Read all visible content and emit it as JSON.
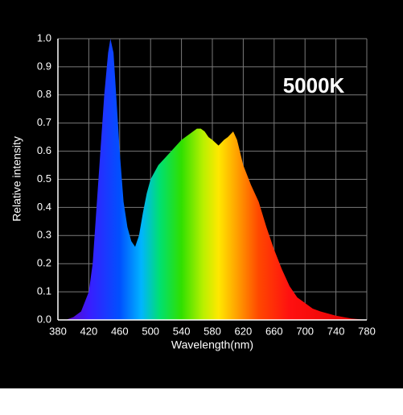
{
  "chart_data": {
    "type": "area",
    "annotation": "5000K",
    "x_label": "Wavelength(nm)",
    "y_label": "Relative intensity",
    "x": [
      380,
      390,
      400,
      410,
      420,
      425,
      430,
      435,
      440,
      445,
      448,
      452,
      455,
      460,
      465,
      470,
      475,
      480,
      485,
      490,
      495,
      500,
      510,
      520,
      530,
      540,
      550,
      560,
      565,
      570,
      575,
      580,
      588,
      595,
      600,
      607,
      612,
      620,
      630,
      640,
      650,
      660,
      670,
      680,
      690,
      700,
      710,
      720,
      740,
      760,
      780
    ],
    "series": [
      {
        "values": [
          0,
          0,
          0.01,
          0.03,
          0.1,
          0.2,
          0.4,
          0.6,
          0.8,
          0.95,
          1.0,
          0.95,
          0.82,
          0.6,
          0.42,
          0.33,
          0.28,
          0.26,
          0.3,
          0.38,
          0.45,
          0.5,
          0.55,
          0.58,
          0.61,
          0.64,
          0.66,
          0.68,
          0.68,
          0.67,
          0.65,
          0.64,
          0.62,
          0.64,
          0.65,
          0.67,
          0.64,
          0.55,
          0.48,
          0.42,
          0.33,
          0.25,
          0.18,
          0.12,
          0.08,
          0.06,
          0.04,
          0.03,
          0.015,
          0.005,
          0
        ]
      }
    ],
    "xlim": [
      380,
      780
    ],
    "ylim": [
      0,
      1
    ],
    "xticks": [
      380,
      420,
      460,
      500,
      540,
      580,
      620,
      660,
      700,
      740,
      780
    ],
    "yticks": [
      {
        "value": 0,
        "label": "0.0"
      },
      0.1,
      0.2,
      0.3,
      0.4,
      0.5,
      0.6,
      0.7,
      0.8,
      0.9,
      {
        "value": 1,
        "label": "1.0"
      }
    ],
    "grid": true
  }
}
